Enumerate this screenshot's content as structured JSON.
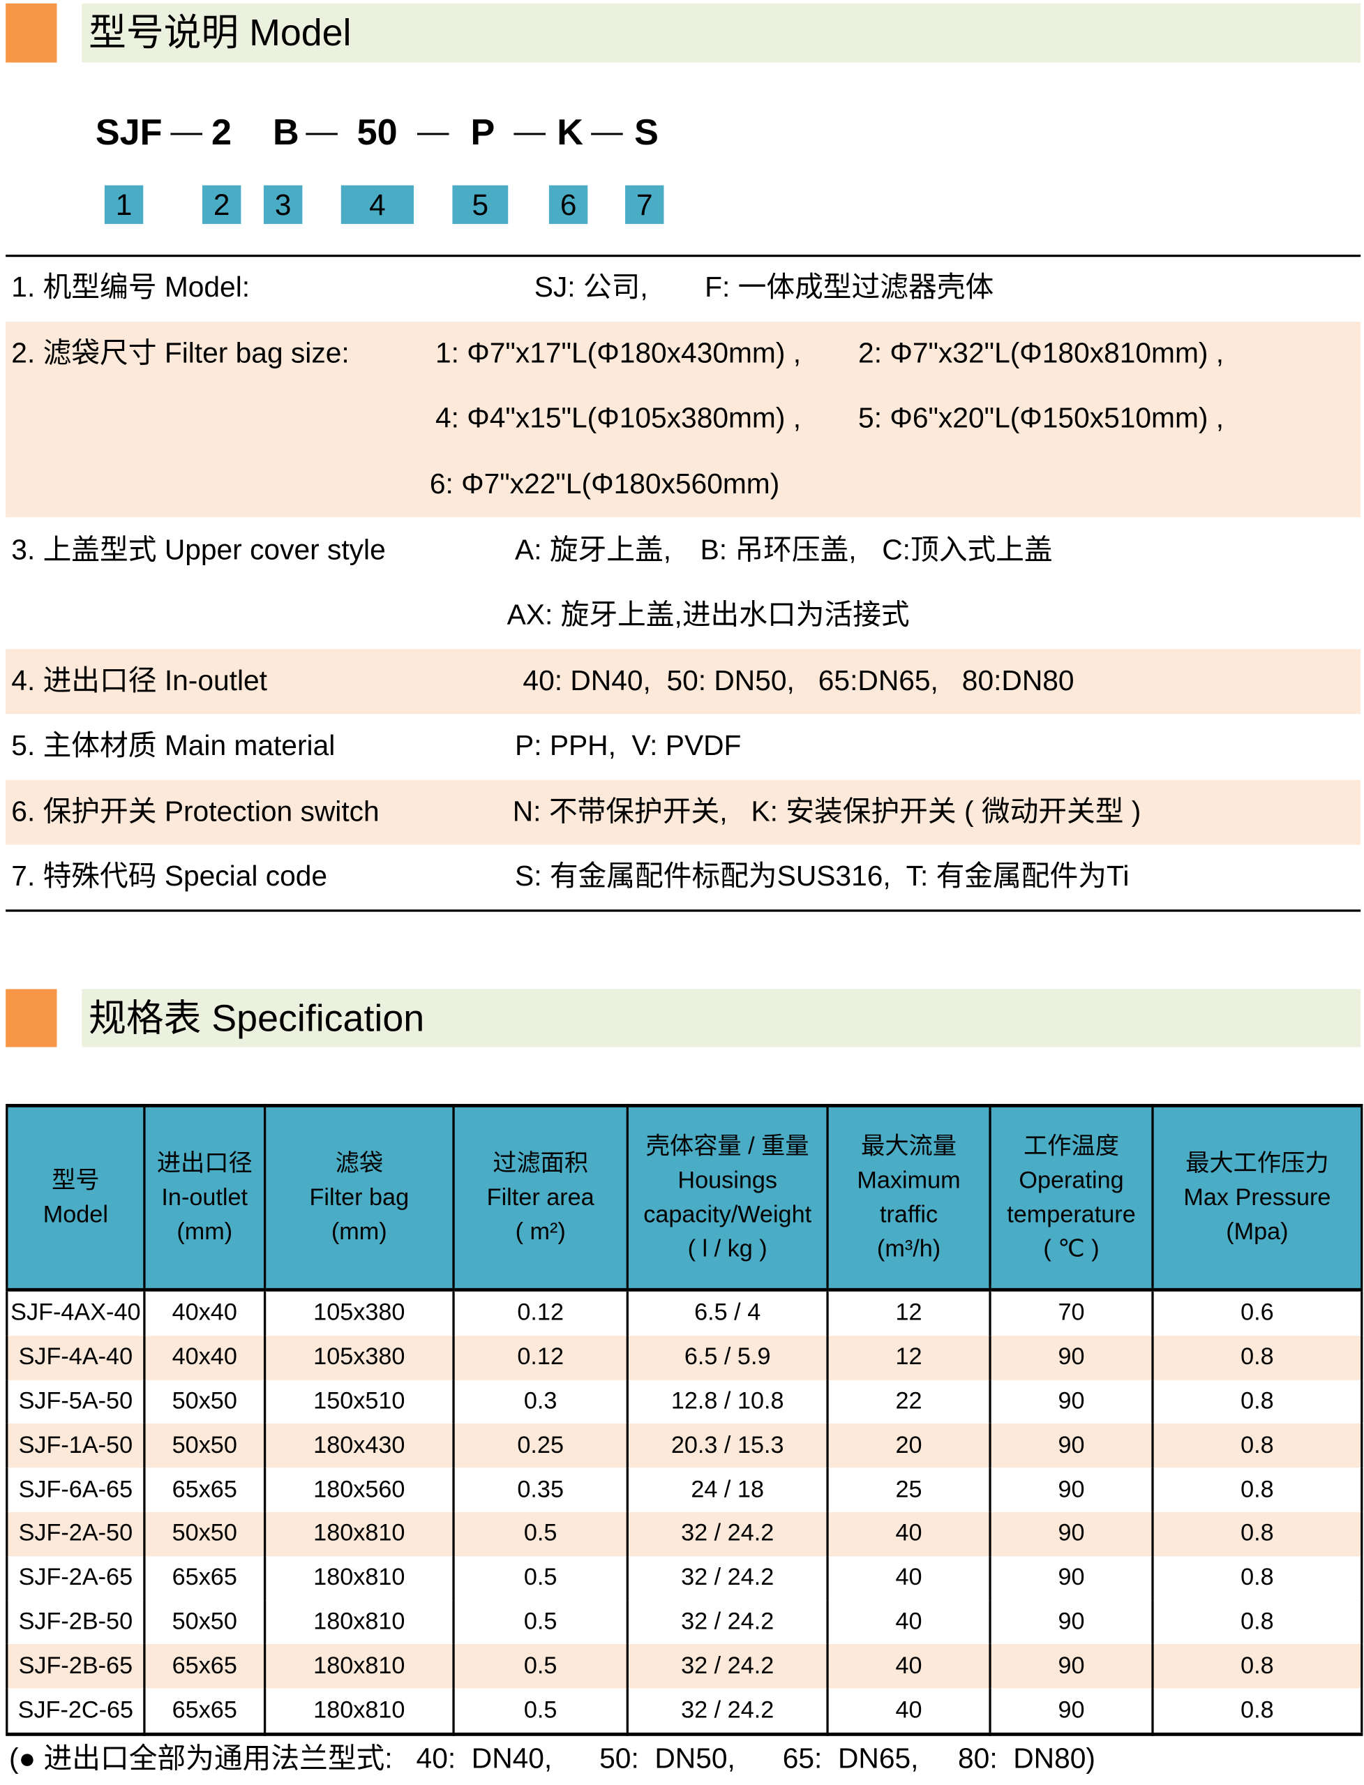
{
  "colors": {
    "accent_orange": "#f79646",
    "section_bg": "#ebf1de",
    "row_shade": "#fde9d9",
    "header_teal": "#4bacc6"
  },
  "model_section": {
    "title": "型号说明 Model",
    "code": {
      "parts": [
        "SJF",
        "2",
        "B",
        "50",
        "P",
        "K",
        "S"
      ],
      "dash": "—"
    },
    "boxes": [
      "1",
      "2",
      "3",
      "4",
      "5",
      "6",
      "7"
    ],
    "rows": [
      {
        "label": "1. 机型编号 Model:",
        "values": [
          "SJ:  公司,",
          "F:  一体成型过滤器壳体"
        ]
      },
      {
        "label": "2. 滤袋尺寸 Filter bag size:",
        "values": [
          "1: Φ7\"x17\"L(Φ180x430mm) ,",
          "2: Φ7\"x32\"L(Φ180x810mm) ,",
          "4: Φ4\"x15\"L(Φ105x380mm) ,",
          "5: Φ6\"x20\"L(Φ150x510mm) ,",
          "6: Φ7\"x22\"L(Φ180x560mm)"
        ]
      },
      {
        "label": "3. 上盖型式 Upper cover style",
        "values": [
          "A: 旋牙上盖,",
          "B: 吊环压盖,",
          "C:顶入式上盖",
          "AX: 旋牙上盖,进出水口为活接式"
        ]
      },
      {
        "label": "4. 进出口径 In-outlet",
        "values": [
          "40: DN40,  50: DN50,   65:DN65,   80:DN80"
        ]
      },
      {
        "label": "5. 主体材质 Main material",
        "values": [
          "P: PPH,  V: PVDF"
        ]
      },
      {
        "label": "6. 保护开关 Protection switch",
        "values": [
          "N: 不带保护开关,   K: 安装保护开关 ( 微动开关型 )"
        ]
      },
      {
        "label": "7. 特殊代码 Special code",
        "values": [
          "S: 有金属配件标配为SUS316,  T: 有金属配件为Ti"
        ]
      }
    ]
  },
  "spec_section": {
    "title": "规格表 Specification",
    "headers": [
      [
        "型号",
        "Model"
      ],
      [
        "进出口径",
        "In-outlet",
        "(mm)"
      ],
      [
        "滤袋",
        "Filter bag",
        "(mm)"
      ],
      [
        "过滤面积",
        "Filter area",
        "( m²)"
      ],
      [
        "壳体容量 / 重量",
        "Housings",
        "capacity/Weight",
        "( l / kg )"
      ],
      [
        "最大流量",
        "Maximum",
        "traffic",
        "(m³/h)"
      ],
      [
        "工作温度",
        "Operating",
        "temperature",
        "( ℃ )"
      ],
      [
        "最大工作压力",
        "Max   Pressure",
        "(Mpa)"
      ]
    ],
    "rows": [
      {
        "shaded": false,
        "cells": [
          "SJF-4AX-40",
          "40x40",
          "105x380",
          "0.12",
          "6.5 / 4",
          "12",
          "70",
          "0.6"
        ]
      },
      {
        "shaded": true,
        "cells": [
          "SJF-4A-40",
          "40x40",
          "105x380",
          "0.12",
          "6.5 / 5.9",
          "12",
          "90",
          "0.8"
        ]
      },
      {
        "shaded": false,
        "cells": [
          "SJF-5A-50",
          "50x50",
          "150x510",
          "0.3",
          "12.8 / 10.8",
          "22",
          "90",
          "0.8"
        ]
      },
      {
        "shaded": true,
        "cells": [
          "SJF-1A-50",
          "50x50",
          "180x430",
          "0.25",
          "20.3 / 15.3",
          "20",
          "90",
          "0.8"
        ]
      },
      {
        "shaded": false,
        "cells": [
          "SJF-6A-65",
          "65x65",
          "180x560",
          "0.35",
          "24 / 18",
          "25",
          "90",
          "0.8"
        ]
      },
      {
        "shaded": true,
        "cells": [
          "SJF-2A-50",
          "50x50",
          "180x810",
          "0.5",
          "32 / 24.2",
          "40",
          "90",
          "0.8"
        ]
      },
      {
        "shaded": false,
        "cells": [
          "SJF-2A-65",
          "65x65",
          "180x810",
          "0.5",
          "32 / 24.2",
          "40",
          "90",
          "0.8"
        ]
      },
      {
        "shaded": false,
        "cells": [
          "SJF-2B-50",
          "50x50",
          "180x810",
          "0.5",
          "32 / 24.2",
          "40",
          "90",
          "0.8"
        ]
      },
      {
        "shaded": true,
        "cells": [
          "SJF-2B-65",
          "65x65",
          "180x810",
          "0.5",
          "32 / 24.2",
          "40",
          "90",
          "0.8"
        ]
      },
      {
        "shaded": false,
        "cells": [
          "SJF-2C-65",
          "65x65",
          "180x810",
          "0.5",
          "32 / 24.2",
          "40",
          "90",
          "0.8"
        ]
      }
    ],
    "footnote": "(● 进出口全部为通用法兰型式:   40:  DN40,      50:  DN50,      65:  DN65,     80:  DN80)"
  }
}
